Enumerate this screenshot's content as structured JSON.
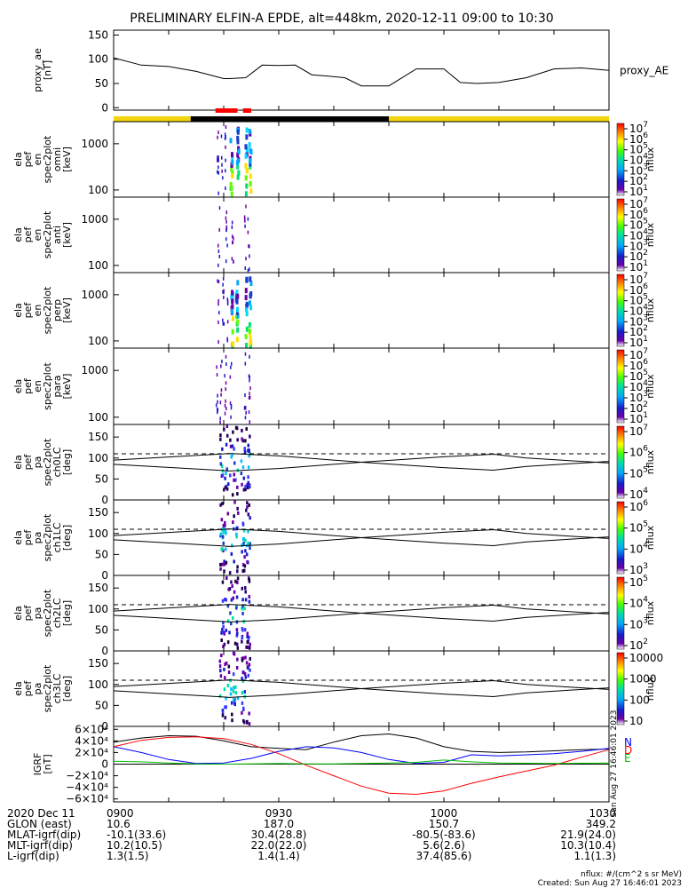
{
  "title": "PRELIMINARY ELFIN-A EPDE, alt=448km, 2020-12-11 09:00 to 10:30",
  "colors": {
    "gold": "#f4d40a",
    "black": "#000000",
    "red_bar": "#ff0000",
    "field_N": "#0000ff",
    "field_D": "#ff0000",
    "field_E": "#00c000",
    "field_total": "#000000"
  },
  "chart_data": [
    {
      "type": "line",
      "panel": "proxy_ae",
      "ylabel_lines": [
        "proxy_ae",
        "[nT]"
      ],
      "right_label": "proxy_AE",
      "ylim": [
        -5,
        160
      ],
      "yticks": [
        0,
        50,
        100,
        150
      ],
      "x_minutes": [
        0,
        5,
        10,
        15,
        20,
        21,
        24,
        27,
        30,
        33,
        36,
        39,
        42,
        45,
        50,
        55,
        60,
        63,
        66,
        70,
        75,
        80,
        85,
        90
      ],
      "values": [
        103,
        88,
        85,
        75,
        60,
        60,
        62,
        88,
        87,
        88,
        68,
        65,
        62,
        45,
        45,
        80,
        80,
        52,
        50,
        52,
        62,
        80,
        82,
        77
      ]
    },
    {
      "type": "table",
      "panel": "orbit_bar",
      "segments": [
        {
          "from": 0,
          "to": 14,
          "color": "gold"
        },
        {
          "from": 14,
          "to": 50,
          "color": "black"
        },
        {
          "from": 50,
          "to": 90,
          "color": "gold"
        }
      ],
      "collection_marks": [
        [
          18.5,
          22.5
        ],
        [
          23.5,
          25
        ]
      ]
    },
    {
      "type": "heatmap",
      "panel": "spec_omni",
      "ylabel_lines": [
        "ela",
        "pef",
        "en",
        "spec2plot",
        "omni",
        "[keV]"
      ],
      "ytick_labels": [
        "1000",
        "100"
      ],
      "colorbar_label": "nflux",
      "colorbar_ticks": [
        "10",
        "10",
        "10",
        "10",
        "10",
        "10",
        "10"
      ],
      "colorbar_exps": [
        "7",
        "6",
        "5",
        "4",
        "3",
        "2",
        "1"
      ],
      "burst_minutes": [
        18.8,
        19.6,
        20.3,
        21.2,
        22.4,
        23.9,
        24.6
      ]
    },
    {
      "type": "heatmap",
      "panel": "spec_anti",
      "ylabel_lines": [
        "ela",
        "pef",
        "en",
        "spec2plot",
        "anti",
        "[keV]"
      ],
      "ytick_labels": [
        "1000",
        "100"
      ],
      "colorbar_label": "nflux",
      "colorbar_ticks": [
        "10",
        "10",
        "10",
        "10",
        "10",
        "10",
        "10"
      ],
      "colorbar_exps": [
        "7",
        "6",
        "5",
        "4",
        "3",
        "2",
        "1"
      ],
      "burst_minutes": [
        19.0,
        20.4,
        21.5,
        23.8,
        24.4
      ]
    },
    {
      "type": "heatmap",
      "panel": "spec_perp",
      "ylabel_lines": [
        "ela",
        "pef",
        "en",
        "spec2plot",
        "perp",
        "[keV]"
      ],
      "ytick_labels": [
        "1000",
        "100"
      ],
      "colorbar_label": "nflux",
      "colorbar_ticks": [
        "10",
        "10",
        "10",
        "10",
        "10",
        "10",
        "10"
      ],
      "colorbar_exps": [
        "7",
        "6",
        "5",
        "4",
        "3",
        "2",
        "1"
      ],
      "burst_minutes": [
        18.9,
        19.8,
        20.6,
        21.3,
        22.2,
        23.9,
        24.6
      ]
    },
    {
      "type": "heatmap",
      "panel": "spec_para",
      "ylabel_lines": [
        "ela",
        "pef",
        "en",
        "spec2plot",
        "para",
        "[keV]"
      ],
      "ytick_labels": [
        "1000",
        "100"
      ],
      "colorbar_label": "nflux",
      "colorbar_ticks": [
        "10",
        "10",
        "10",
        "10",
        "10",
        "10",
        "10"
      ],
      "colorbar_exps": [
        "7",
        "6",
        "5",
        "4",
        "3",
        "2",
        "1"
      ],
      "burst_minutes": [
        18.7,
        19.4,
        20.2,
        21.2,
        23.8,
        24.6
      ]
    },
    {
      "type": "heatmap",
      "panel": "ch0LC",
      "ylabel_lines": [
        "ela",
        "pef",
        "pa",
        "spec2plot",
        "ch0LC",
        "[deg]"
      ],
      "ylim": [
        0,
        180
      ],
      "yticks": [
        0,
        50,
        100,
        150
      ],
      "colorbar_label": "nflux",
      "colorbar_ticks": [
        "10",
        "10",
        "10",
        "10"
      ],
      "colorbar_exps": [
        "7",
        "6",
        "5",
        "4"
      ],
      "loss_cone_minutes": [
        0,
        20,
        21,
        30,
        45,
        60,
        69,
        75,
        90
      ],
      "loss_cone_values": [
        85,
        70,
        69,
        75,
        90,
        103,
        109,
        100,
        88
      ],
      "anti_loss_cone_values": [
        95,
        110,
        111,
        105,
        90,
        77,
        71,
        80,
        92
      ],
      "dashed_line_value": 110
    },
    {
      "type": "heatmap",
      "panel": "ch1LC",
      "ylabel_lines": [
        "ela",
        "pef",
        "pa",
        "spec2plot",
        "ch1LC",
        "[deg]"
      ],
      "ylim": [
        0,
        180
      ],
      "yticks": [
        0,
        50,
        100,
        150
      ],
      "colorbar_label": "nflux",
      "colorbar_ticks": [
        "10",
        "10",
        "10",
        "10"
      ],
      "colorbar_exps": [
        "6",
        "5",
        "4",
        "3"
      ],
      "loss_cone_minutes": [
        0,
        20,
        21,
        30,
        45,
        60,
        69,
        75,
        90
      ],
      "loss_cone_values": [
        85,
        70,
        69,
        75,
        90,
        103,
        109,
        100,
        88
      ],
      "anti_loss_cone_values": [
        95,
        110,
        111,
        105,
        90,
        77,
        71,
        80,
        92
      ],
      "dashed_line_value": 110
    },
    {
      "type": "heatmap",
      "panel": "ch2LC",
      "ylabel_lines": [
        "ela",
        "pef",
        "pa",
        "spec2plot",
        "ch2LC",
        "[deg]"
      ],
      "ylim": [
        0,
        180
      ],
      "yticks": [
        0,
        50,
        100,
        150
      ],
      "colorbar_label": "nflux",
      "colorbar_ticks": [
        "10",
        "10",
        "10",
        "10"
      ],
      "colorbar_exps": [
        "5",
        "4",
        "3",
        "2"
      ],
      "loss_cone_minutes": [
        0,
        20,
        21,
        30,
        45,
        60,
        69,
        75,
        90
      ],
      "loss_cone_values": [
        85,
        70,
        69,
        75,
        90,
        103,
        109,
        100,
        88
      ],
      "anti_loss_cone_values": [
        95,
        110,
        111,
        105,
        90,
        77,
        71,
        80,
        92
      ],
      "dashed_line_value": 110
    },
    {
      "type": "heatmap",
      "panel": "ch3LC",
      "ylabel_lines": [
        "ela",
        "pef",
        "pa",
        "spec2plot",
        "ch3LC",
        "[deg]"
      ],
      "ylim": [
        0,
        180
      ],
      "yticks": [
        0,
        50,
        100,
        150
      ],
      "colorbar_label": "nflux",
      "colorbar_ticks": [
        "10000",
        "1000",
        "100",
        "10"
      ],
      "colorbar_exps": [
        "",
        "",
        "",
        ""
      ],
      "loss_cone_minutes": [
        0,
        20,
        21,
        30,
        45,
        60,
        69,
        75,
        90
      ],
      "loss_cone_values": [
        85,
        70,
        69,
        75,
        90,
        103,
        109,
        100,
        88
      ],
      "anti_loss_cone_values": [
        95,
        110,
        111,
        105,
        90,
        77,
        71,
        80,
        92
      ],
      "dashed_line_value": 110
    },
    {
      "type": "line",
      "panel": "igrf",
      "ylabel_lines": [
        "IGRF",
        "[nT]"
      ],
      "ylim": [
        -65000,
        65000
      ],
      "ytick_labels": [
        "6×10⁴",
        "4×10⁴",
        "2×10⁴",
        "0",
        "−2×10⁴",
        "−4×10⁴",
        "−6×10⁴"
      ],
      "legend": [
        "N",
        "D",
        "E"
      ],
      "stamp": "Sun Aug 27 16:46:01 2023",
      "x_minutes": [
        0,
        5,
        10,
        15,
        20,
        25,
        30,
        35,
        40,
        45,
        50,
        55,
        60,
        65,
        70,
        75,
        80,
        85,
        90
      ],
      "series": [
        {
          "color": "field_total",
          "values": [
            38000,
            45000,
            49000,
            48000,
            40000,
            30000,
            27000,
            25000,
            38000,
            49000,
            52000,
            45000,
            30000,
            22000,
            20000,
            21000,
            23000,
            25000,
            26000
          ]
        },
        {
          "color": "field_N",
          "values": [
            30000,
            20000,
            8000,
            1000,
            2000,
            10000,
            22000,
            30000,
            28000,
            20000,
            8000,
            1000,
            3000,
            16000,
            14000,
            16000,
            18000,
            22000,
            27000
          ]
        },
        {
          "color": "field_D",
          "values": [
            30000,
            41000,
            46000,
            47000,
            44000,
            34000,
            18000,
            -2000,
            -20000,
            -38000,
            -50000,
            -52000,
            -46000,
            -33000,
            -22000,
            -12000,
            -2000,
            12000,
            25000
          ]
        },
        {
          "color": "field_E",
          "values": [
            5000,
            4000,
            2000,
            500,
            0,
            500,
            1000,
            500,
            500,
            1000,
            2000,
            3000,
            7000,
            4000,
            2000,
            1500,
            1000,
            1500,
            2000
          ]
        }
      ]
    }
  ],
  "footer": {
    "row_labels": [
      "2020 Dec 11",
      "GLON (east)",
      "MLAT-igrf(dip)",
      "MLT-igrf(dip)",
      "L-igrf(dip)"
    ],
    "columns": [
      {
        "minute": 0,
        "values": [
          "0900",
          "10.6",
          "-10.1(33.6)",
          "10.2(10.5)",
          "1.3(1.5)"
        ]
      },
      {
        "minute": 30,
        "values": [
          "0930",
          "187.0",
          "30.4(28.8)",
          "22.0(22.0)",
          "1.4(1.4)"
        ]
      },
      {
        "minute": 60,
        "values": [
          "1000",
          "150.7",
          "-80.5(-83.6)",
          "5.6(2.6)",
          "37.4(85.6)"
        ]
      },
      {
        "minute": 90,
        "values": [
          "1030",
          "349.2",
          "21.9(24.0)",
          "10.3(10.4)",
          "1.1(1.3)"
        ]
      }
    ],
    "units_note": "nflux: #/(cm^2 s sr MeV)",
    "created": "Created: Sun Aug 27 16:46:01 2023"
  }
}
